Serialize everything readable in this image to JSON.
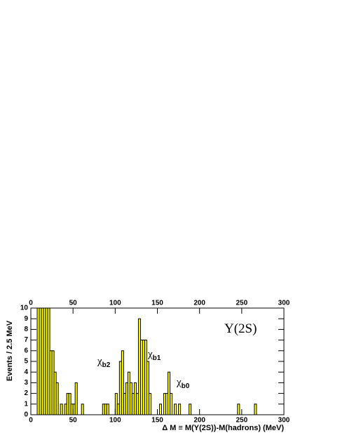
{
  "chart_data": {
    "type": "histogram",
    "x_label": "Δ M ≡ M(Υ(2S))-M(hadrons) (MeV)",
    "y_label": "Events / 2.5 MeV",
    "bins": [
      0,
      2.5,
      5,
      7.5,
      10,
      12.5,
      15,
      17.5,
      20,
      22.5,
      25,
      27.5,
      30,
      32.5,
      35,
      37.5,
      40,
      42.5,
      45,
      47.5,
      50,
      52.5,
      55,
      57.5,
      60,
      62.5,
      65,
      67.5,
      70,
      72.5,
      75,
      77.5,
      80,
      82.5,
      85,
      87.5,
      90,
      92.5,
      95,
      97.5,
      100,
      102.5,
      105,
      107.5,
      110,
      112.5,
      115,
      117.5,
      120,
      122.5,
      125,
      127.5,
      130,
      132.5,
      135,
      137.5,
      140,
      142.5,
      145,
      147.5,
      150,
      152.5,
      155,
      157.5,
      160,
      162.5,
      165,
      167.5,
      170,
      172.5,
      175,
      177.5,
      180,
      182.5,
      185,
      187.5,
      190,
      192.5,
      195,
      197.5,
      200,
      202.5,
      205,
      207.5,
      210,
      212.5,
      215,
      217.5,
      220,
      222.5,
      225,
      227.5,
      230,
      232.5,
      235,
      237.5,
      240,
      242.5,
      245,
      247.5,
      250,
      252.5,
      255,
      257.5,
      260,
      262.5,
      265,
      267.5,
      270,
      272.5,
      275,
      277.5,
      280,
      282.5,
      285,
      287.5,
      290,
      292.5,
      295,
      297.5,
      300
    ],
    "counts": [
      0,
      0,
      0,
      10,
      10,
      10,
      10,
      10,
      10,
      6,
      6,
      4,
      3,
      0,
      1,
      0,
      1,
      2,
      2,
      1,
      1,
      3,
      0,
      0,
      1,
      0,
      0,
      0,
      0,
      0,
      0,
      0,
      0,
      0,
      1,
      1,
      1,
      0,
      0,
      0,
      2,
      1,
      5,
      6,
      2,
      3,
      4,
      3,
      2,
      3,
      2,
      9,
      7,
      7,
      7,
      5,
      2,
      0,
      0,
      0,
      0,
      1,
      0,
      2,
      2,
      4,
      2,
      0,
      1,
      0,
      1,
      0,
      0,
      0,
      0,
      1,
      0,
      0,
      0,
      0,
      0,
      0,
      0,
      0,
      0,
      0,
      0,
      0,
      0,
      0,
      0,
      0,
      0,
      0,
      0,
      0,
      0,
      0,
      1,
      0,
      0,
      0,
      0,
      0,
      0,
      0,
      1,
      0,
      0,
      0,
      0,
      0,
      0,
      0,
      0,
      0,
      0,
      0,
      0,
      0
    ],
    "color": "#ffff00",
    "xlim": [
      0,
      300
    ],
    "xticks": [
      0,
      50,
      100,
      150,
      200,
      250,
      300
    ],
    "ylim": [
      0,
      10
    ],
    "yticks": [
      0,
      1,
      2,
      3,
      4,
      5,
      6,
      7,
      8,
      9,
      10
    ],
    "annotations": [
      {
        "text": "χ",
        "sub": "b2"
      },
      {
        "text": "χ",
        "sub": "b1"
      },
      {
        "text": "χ",
        "sub": "b0"
      },
      {
        "text": "Υ(2S)"
      }
    ]
  }
}
